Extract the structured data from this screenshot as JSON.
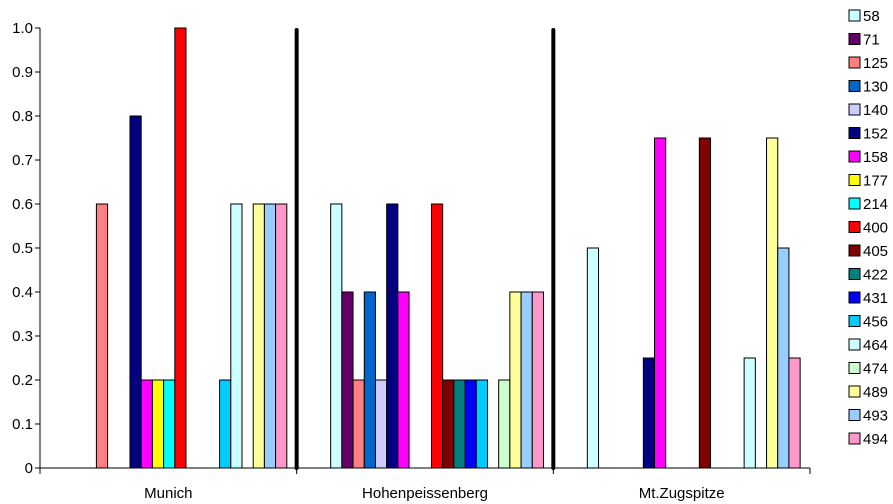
{
  "chart_data": {
    "type": "bar",
    "categories": [
      "Munich",
      "Hohenpeissenberg",
      "Mt.Zugspitze"
    ],
    "ylim": [
      0,
      1.0
    ],
    "yticks": [
      "0",
      "0.1",
      "0.2",
      "0.3",
      "0.4",
      "0.5",
      "0.6",
      "0.7",
      "0.8",
      "0.9",
      "1.0"
    ],
    "grid": false,
    "legend_position": "right",
    "series": [
      {
        "name": "58",
        "color": "#CCFFFF",
        "values": [
          0,
          0.6,
          0.5
        ]
      },
      {
        "name": "71",
        "color": "#660066",
        "values": [
          0,
          0.4,
          0
        ]
      },
      {
        "name": "125",
        "color": "#FF8080",
        "values": [
          0.6,
          0.2,
          0
        ]
      },
      {
        "name": "130",
        "color": "#0066CC",
        "values": [
          0,
          0.4,
          0
        ]
      },
      {
        "name": "140",
        "color": "#CCCCFF",
        "values": [
          0,
          0.2,
          0
        ]
      },
      {
        "name": "152",
        "color": "#000080",
        "values": [
          0.8,
          0.6,
          0.25
        ]
      },
      {
        "name": "158",
        "color": "#FF00FF",
        "values": [
          0.2,
          0.4,
          0.75
        ]
      },
      {
        "name": "177",
        "color": "#FFFF00",
        "values": [
          0.2,
          0,
          0
        ]
      },
      {
        "name": "214",
        "color": "#00FFFF",
        "values": [
          0.2,
          0,
          0
        ]
      },
      {
        "name": "400",
        "color": "#FF0000",
        "values": [
          1.0,
          0.6,
          0
        ]
      },
      {
        "name": "405",
        "color": "#800000",
        "values": [
          0,
          0.2,
          0.75
        ]
      },
      {
        "name": "422",
        "color": "#008080",
        "values": [
          0,
          0.2,
          0
        ]
      },
      {
        "name": "431",
        "color": "#0000FF",
        "values": [
          0,
          0.2,
          0
        ]
      },
      {
        "name": "456",
        "color": "#00CCFF",
        "values": [
          0.2,
          0.2,
          0
        ]
      },
      {
        "name": "464",
        "color": "#CCFFFF",
        "values": [
          0.6,
          0,
          0.25
        ]
      },
      {
        "name": "474",
        "color": "#CCFFCC",
        "values": [
          0,
          0.2,
          0
        ]
      },
      {
        "name": "489",
        "color": "#FFFF99",
        "values": [
          0.6,
          0.4,
          0.75
        ]
      },
      {
        "name": "493",
        "color": "#99CCFF",
        "values": [
          0.6,
          0.4,
          0.5
        ]
      },
      {
        "name": "494",
        "color": "#FF99CC",
        "values": [
          0.6,
          0.4,
          0.25
        ]
      }
    ]
  }
}
